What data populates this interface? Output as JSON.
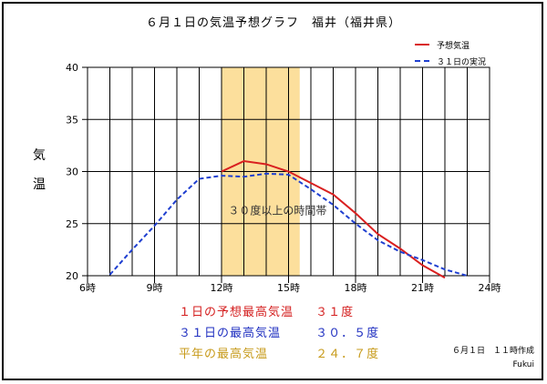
{
  "title": "６月１日の気温予想グラフ　福井（福井県）",
  "legend": {
    "forecast": "予想気温",
    "actual": "３１日の実況"
  },
  "ylabel": [
    "気",
    "温"
  ],
  "colors": {
    "forecast": "#d92020",
    "actual": "#1f3fd0",
    "band": "#fcdf9c",
    "grid": "#000000"
  },
  "chart_data": {
    "type": "line",
    "title": "６月１日の気温予想グラフ　福井（福井県）",
    "ylabel": "気温",
    "xlim": [
      6,
      24
    ],
    "ylim": [
      20,
      40
    ],
    "x_ticks": [
      6,
      9,
      12,
      15,
      18,
      21,
      24
    ],
    "x_tick_labels": [
      "6時",
      "9時",
      "12時",
      "15時",
      "18時",
      "21時",
      "24時"
    ],
    "y_ticks": [
      20,
      25,
      30,
      35,
      40
    ],
    "grid": true,
    "legend_position": "top-right",
    "highlight_band": {
      "x_start": 12,
      "x_end": 15.5,
      "label": "３０度以上の時間帯"
    },
    "series": [
      {
        "name": "予想気温",
        "style": "solid",
        "x": [
          12,
          13,
          14,
          15,
          16,
          17,
          18,
          19,
          20,
          21,
          22
        ],
        "y": [
          30,
          31,
          30.7,
          30,
          28.9,
          27.8,
          26,
          24,
          22.6,
          21,
          19.8
        ]
      },
      {
        "name": "３１日の実況",
        "style": "dashed",
        "x": [
          7,
          8,
          9,
          10,
          11,
          12,
          13,
          14,
          15,
          16,
          17,
          18,
          19,
          20,
          21,
          22,
          23
        ],
        "y": [
          20.1,
          22.5,
          24.8,
          27.3,
          29.3,
          29.6,
          29.5,
          29.8,
          29.7,
          28.3,
          26.8,
          25,
          23.4,
          22.3,
          21.5,
          20.6,
          20
        ]
      }
    ]
  },
  "summary": [
    {
      "label": "１日の予想最高気温",
      "value": "３１度"
    },
    {
      "label": "３１日の最高気温",
      "value": "３０．５度"
    },
    {
      "label": "平年の最高気温",
      "value": "２４．７度"
    }
  ],
  "issued": "６月１日　１１時作成",
  "station": "Fukui"
}
